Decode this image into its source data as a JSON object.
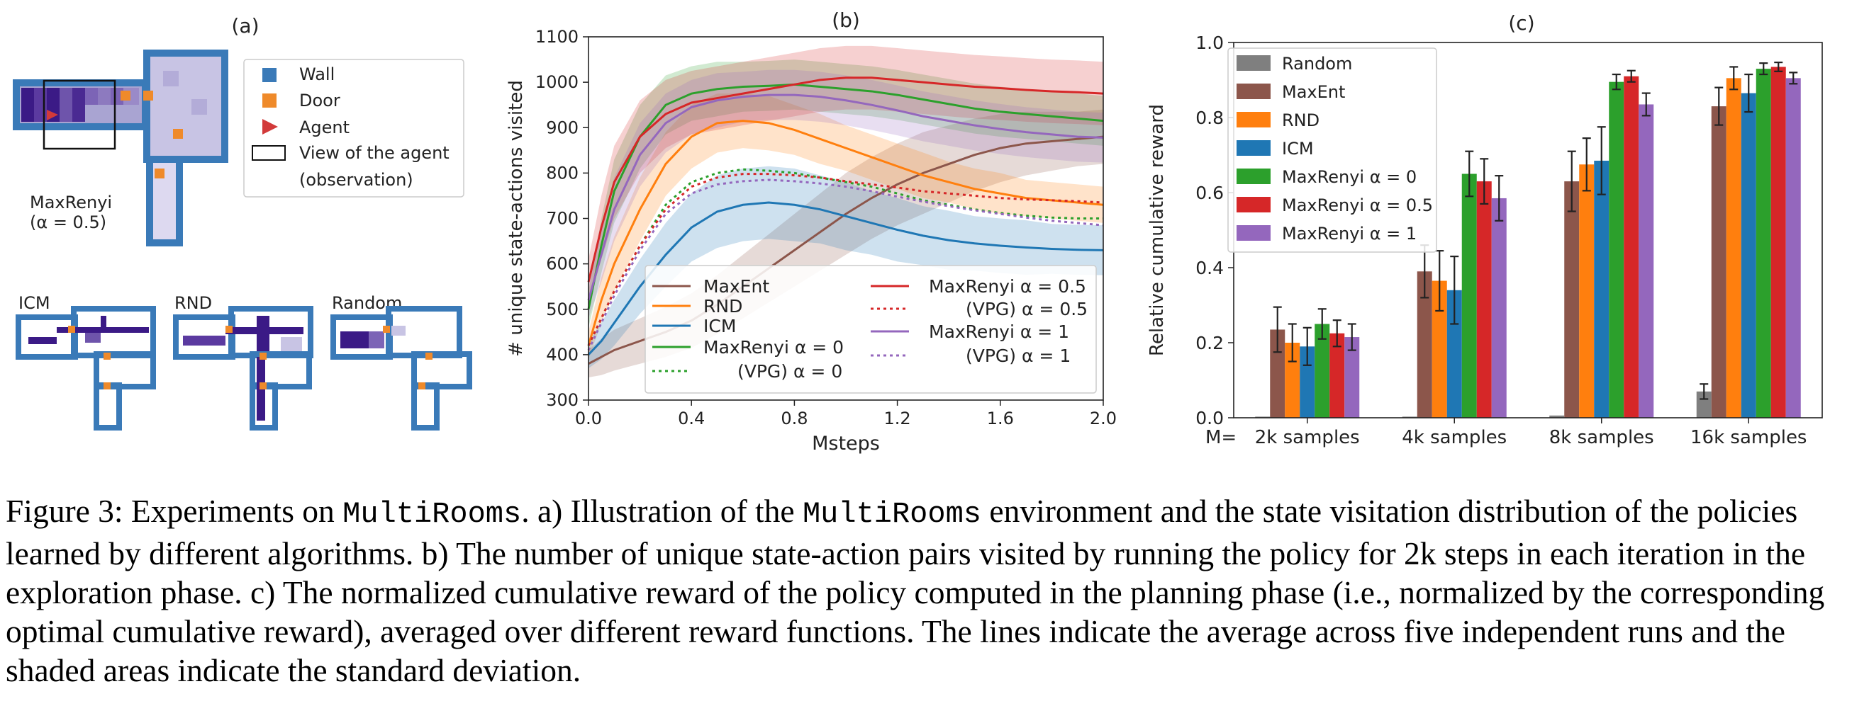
{
  "panel_a": {
    "label": "(a)",
    "legend": [
      {
        "key": "wall",
        "label": "Wall",
        "color": "#3a7ab8"
      },
      {
        "key": "door",
        "label": "Door",
        "color": "#ef8a2a"
      },
      {
        "key": "agent",
        "label": "Agent",
        "color": "#d23a3a"
      },
      {
        "key": "view",
        "label": "View of the agent",
        "label2": "(observation)"
      }
    ],
    "main_caption": [
      "MaxRenyi",
      "(α = 0.5)"
    ],
    "small_labels": [
      "ICM",
      "RND",
      "Random"
    ],
    "wall_color": "#3a7ab8",
    "door_color": "#ef8a2a",
    "agent_color": "#d23a3a",
    "visit_color": "#3b1a86"
  },
  "chart_data": [
    {
      "type": "line",
      "title": "(b)",
      "xlabel": "Msteps",
      "ylabel": "# unique state-actions visited",
      "xlim": [
        0,
        2.0
      ],
      "ylim": [
        300,
        1100
      ],
      "xticks": [
        "0.0",
        "0.4",
        "0.8",
        "1.2",
        "1.6",
        "2.0"
      ],
      "yticks": [
        "300",
        "400",
        "500",
        "600",
        "700",
        "800",
        "900",
        "1000",
        "1100"
      ],
      "grid": false,
      "legend_position": "bottom-center",
      "series": [
        {
          "name": "MaxEnt",
          "color": "#8c564b",
          "dash": false,
          "x": [
            0,
            0.05,
            0.1,
            0.2,
            0.3,
            0.4,
            0.5,
            0.6,
            0.7,
            0.8,
            0.9,
            1.0,
            1.1,
            1.2,
            1.3,
            1.4,
            1.5,
            1.6,
            1.7,
            1.8,
            1.9,
            2.0
          ],
          "y": [
            380,
            395,
            410,
            430,
            450,
            475,
            510,
            550,
            590,
            630,
            670,
            710,
            745,
            775,
            800,
            820,
            840,
            855,
            865,
            870,
            875,
            880
          ],
          "sd": [
            30,
            40,
            45,
            50,
            55,
            60,
            65,
            70,
            75,
            80,
            85,
            90,
            90,
            90,
            90,
            85,
            80,
            75,
            70,
            65,
            60,
            60
          ]
        },
        {
          "name": "RND",
          "color": "#ff7f0e",
          "dash": false,
          "x": [
            0,
            0.05,
            0.1,
            0.2,
            0.3,
            0.4,
            0.5,
            0.6,
            0.7,
            0.8,
            0.9,
            1.0,
            1.1,
            1.2,
            1.3,
            1.4,
            1.5,
            1.6,
            1.7,
            1.8,
            1.9,
            2.0
          ],
          "y": [
            420,
            520,
            600,
            720,
            820,
            880,
            910,
            915,
            910,
            895,
            875,
            855,
            835,
            815,
            795,
            780,
            765,
            755,
            745,
            740,
            735,
            730
          ],
          "sd": [
            30,
            50,
            60,
            70,
            70,
            70,
            65,
            60,
            60,
            55,
            55,
            50,
            50,
            50,
            50,
            45,
            45,
            45,
            40,
            40,
            40,
            40
          ]
        },
        {
          "name": "ICM",
          "color": "#1f77b4",
          "dash": false,
          "x": [
            0,
            0.05,
            0.1,
            0.2,
            0.3,
            0.4,
            0.5,
            0.6,
            0.7,
            0.8,
            0.9,
            1.0,
            1.1,
            1.2,
            1.3,
            1.4,
            1.5,
            1.6,
            1.7,
            1.8,
            1.9,
            2.0
          ],
          "y": [
            400,
            430,
            470,
            550,
            620,
            680,
            715,
            730,
            735,
            730,
            720,
            705,
            690,
            675,
            662,
            652,
            645,
            640,
            636,
            633,
            631,
            630
          ],
          "sd": [
            30,
            40,
            50,
            60,
            70,
            75,
            80,
            80,
            80,
            80,
            75,
            75,
            70,
            70,
            65,
            65,
            60,
            60,
            60,
            55,
            55,
            55
          ]
        },
        {
          "name": "MaxRenyi α = 0",
          "color": "#2ca02c",
          "dash": false,
          "x": [
            0,
            0.05,
            0.1,
            0.2,
            0.3,
            0.4,
            0.5,
            0.6,
            0.7,
            0.8,
            0.9,
            1.0,
            1.1,
            1.2,
            1.3,
            1.4,
            1.5,
            1.6,
            1.7,
            1.8,
            1.9,
            2.0
          ],
          "y": [
            500,
            640,
            760,
            880,
            950,
            975,
            985,
            990,
            992,
            995,
            990,
            985,
            980,
            972,
            962,
            952,
            942,
            935,
            930,
            925,
            920,
            915
          ],
          "sd": [
            40,
            60,
            70,
            70,
            65,
            60,
            60,
            55,
            55,
            55,
            55,
            55,
            55,
            55,
            55,
            55,
            55,
            55,
            55,
            55,
            55,
            55
          ]
        },
        {
          "name": "(VPG) α = 0",
          "color": "#2ca02c",
          "dash": true,
          "x": [
            0,
            0.05,
            0.1,
            0.2,
            0.3,
            0.4,
            0.5,
            0.6,
            0.7,
            0.8,
            0.9,
            1.0,
            1.1,
            1.2,
            1.3,
            1.4,
            1.5,
            1.6,
            1.7,
            1.8,
            1.9,
            2.0
          ],
          "y": [
            420,
            480,
            540,
            640,
            730,
            780,
            800,
            808,
            805,
            800,
            790,
            780,
            770,
            755,
            740,
            730,
            720,
            712,
            706,
            702,
            700,
            700
          ],
          "sd": [
            20,
            20,
            20,
            20,
            20,
            20,
            20,
            20,
            20,
            20,
            20,
            20,
            20,
            20,
            20,
            20,
            20,
            20,
            20,
            20,
            20,
            20
          ]
        },
        {
          "name": "MaxRenyi α = 0.5",
          "color": "#d62728",
          "dash": false,
          "x": [
            0,
            0.05,
            0.1,
            0.2,
            0.3,
            0.4,
            0.5,
            0.6,
            0.7,
            0.8,
            0.9,
            1.0,
            1.1,
            1.2,
            1.3,
            1.4,
            1.5,
            1.6,
            1.7,
            1.8,
            1.9,
            2.0
          ],
          "y": [
            560,
            680,
            780,
            880,
            930,
            955,
            965,
            975,
            985,
            995,
            1005,
            1010,
            1010,
            1005,
            1000,
            995,
            990,
            987,
            983,
            980,
            978,
            975
          ],
          "sd": [
            50,
            70,
            80,
            80,
            75,
            70,
            70,
            70,
            70,
            70,
            70,
            70,
            70,
            70,
            70,
            70,
            70,
            70,
            70,
            70,
            70,
            70
          ]
        },
        {
          "name": "(VPG) α = 0.5",
          "color": "#d62728",
          "dash": true,
          "x": [
            0,
            0.05,
            0.1,
            0.2,
            0.3,
            0.4,
            0.5,
            0.6,
            0.7,
            0.8,
            0.9,
            1.0,
            1.1,
            1.2,
            1.3,
            1.4,
            1.5,
            1.6,
            1.7,
            1.8,
            1.9,
            2.0
          ],
          "y": [
            420,
            480,
            540,
            640,
            720,
            770,
            790,
            798,
            798,
            795,
            790,
            782,
            775,
            768,
            760,
            755,
            750,
            745,
            742,
            740,
            738,
            735
          ],
          "sd": [
            20,
            20,
            20,
            20,
            20,
            20,
            20,
            20,
            20,
            20,
            20,
            20,
            20,
            20,
            20,
            20,
            20,
            20,
            20,
            20,
            20,
            20
          ]
        },
        {
          "name": "MaxRenyi α = 1",
          "color": "#9467bd",
          "dash": false,
          "x": [
            0,
            0.05,
            0.1,
            0.2,
            0.3,
            0.4,
            0.5,
            0.6,
            0.7,
            0.8,
            0.9,
            1.0,
            1.1,
            1.2,
            1.3,
            1.4,
            1.5,
            1.6,
            1.7,
            1.8,
            1.9,
            2.0
          ],
          "y": [
            520,
            620,
            720,
            840,
            910,
            945,
            960,
            968,
            972,
            972,
            968,
            960,
            950,
            938,
            925,
            915,
            905,
            897,
            890,
            885,
            880,
            878
          ],
          "sd": [
            40,
            60,
            70,
            70,
            65,
            60,
            60,
            55,
            55,
            55,
            55,
            55,
            55,
            55,
            55,
            55,
            55,
            55,
            55,
            55,
            55,
            55
          ]
        },
        {
          "name": "(VPG) α = 1",
          "color": "#9467bd",
          "dash": true,
          "x": [
            0,
            0.05,
            0.1,
            0.2,
            0.3,
            0.4,
            0.5,
            0.6,
            0.7,
            0.8,
            0.9,
            1.0,
            1.1,
            1.2,
            1.3,
            1.4,
            1.5,
            1.6,
            1.7,
            1.8,
            1.9,
            2.0
          ],
          "y": [
            410,
            470,
            530,
            630,
            710,
            755,
            775,
            782,
            785,
            782,
            777,
            770,
            760,
            748,
            737,
            727,
            718,
            710,
            702,
            695,
            690,
            685
          ],
          "sd": [
            20,
            20,
            20,
            20,
            20,
            20,
            20,
            20,
            20,
            20,
            20,
            20,
            20,
            20,
            20,
            20,
            20,
            20,
            20,
            20,
            20,
            20
          ]
        }
      ],
      "legend_lines": [
        {
          "text": "MaxEnt",
          "series": 0
        },
        {
          "text": "RND",
          "series": 1
        },
        {
          "text": "ICM",
          "series": 2
        },
        {
          "text": "MaxRenyi α = 0",
          "series": 3
        },
        {
          "text": "(VPG) α = 0",
          "series": 4
        },
        {
          "text": "MaxRenyi α = 0.5",
          "series": 5
        },
        {
          "text": "(VPG) α = 0.5",
          "series": 6
        },
        {
          "text": "MaxRenyi α = 1",
          "series": 7
        },
        {
          "text": "(VPG) α = 1",
          "series": 8
        }
      ]
    },
    {
      "type": "bar",
      "title": "(c)",
      "xlabel": "",
      "ylabel": "Relative cumulative reward",
      "ylim": [
        0,
        1.0
      ],
      "yticks": [
        "0.0",
        "0.2",
        "0.4",
        "0.6",
        "0.8",
        "1.0"
      ],
      "xprefix": "M=",
      "categories": [
        "2k samples",
        "4k samples",
        "8k samples",
        "16k samples"
      ],
      "legend_position": "top-left",
      "series": [
        {
          "name": "Random",
          "color": "#7f7f7f",
          "values": [
            0.003,
            0.003,
            0.006,
            0.07
          ],
          "err": [
            0.0,
            0.0,
            0.0,
            0.02
          ]
        },
        {
          "name": "MaxEnt",
          "color": "#8c564b",
          "values": [
            0.235,
            0.39,
            0.63,
            0.83
          ],
          "err": [
            0.06,
            0.07,
            0.08,
            0.05
          ]
        },
        {
          "name": "RND",
          "color": "#ff7f0e",
          "values": [
            0.2,
            0.365,
            0.675,
            0.905
          ],
          "err": [
            0.05,
            0.08,
            0.07,
            0.03
          ]
        },
        {
          "name": "ICM",
          "color": "#1f77b4",
          "values": [
            0.19,
            0.34,
            0.685,
            0.865
          ],
          "err": [
            0.05,
            0.09,
            0.09,
            0.05
          ]
        },
        {
          "name": "MaxRenyi α = 0",
          "color": "#2ca02c",
          "values": [
            0.25,
            0.65,
            0.895,
            0.93
          ],
          "err": [
            0.04,
            0.06,
            0.02,
            0.015
          ]
        },
        {
          "name": "MaxRenyi α = 0.5",
          "color": "#d62728",
          "values": [
            0.225,
            0.63,
            0.91,
            0.935
          ],
          "err": [
            0.035,
            0.06,
            0.015,
            0.012
          ]
        },
        {
          "name": "MaxRenyi α = 1",
          "color": "#9467bd",
          "values": [
            0.215,
            0.585,
            0.835,
            0.905
          ],
          "err": [
            0.035,
            0.06,
            0.03,
            0.015
          ]
        }
      ]
    }
  ],
  "caption": {
    "p1": "Figure 3: Experiments on ",
    "m1": "MultiRooms",
    "p2": ". a) Illustration of the ",
    "m2": "MultiRooms",
    "p3": " environment and the state visitation distribution of the policies learned by different algorithms. b) The number of unique state-action pairs visited by running the policy for 2k steps in each iteration in the exploration phase. c) The normalized cumulative reward of the policy computed in the planning phase (i.e., normalized by the corresponding optimal cumulative reward), averaged over different reward functions. The lines indicate the average across five independent runs and the shaded areas indicate the standard deviation."
  }
}
